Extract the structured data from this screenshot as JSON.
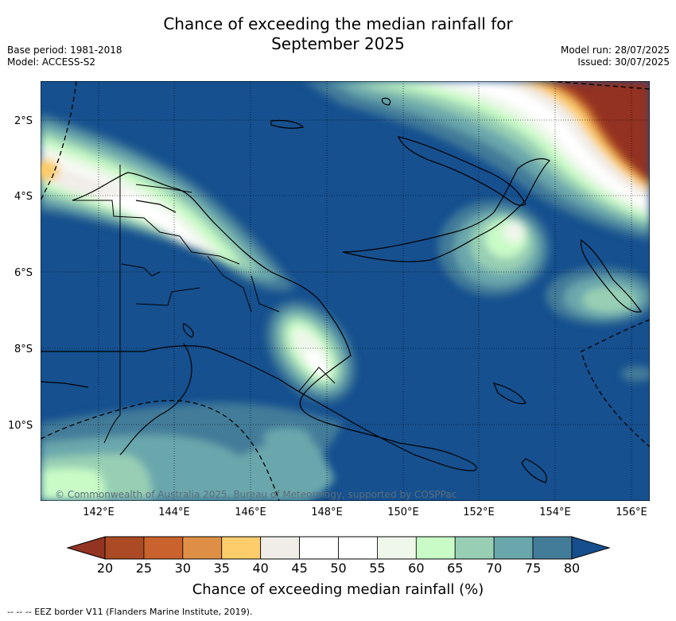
{
  "title": {
    "line1": "Chance of exceeding the median rainfall for",
    "line2": "September 2025"
  },
  "meta": {
    "base_period": "Base period: 1981-2018",
    "model": "Model: ACCESS-S2",
    "model_run": "Model run: 28/07/2025",
    "issued": "Issued: 30/07/2025"
  },
  "map": {
    "lat_labels": [
      "2°S",
      "4°S",
      "6°S",
      "8°S",
      "10°S"
    ],
    "lon_labels": [
      "142°E",
      "144°E",
      "146°E",
      "148°E",
      "150°E",
      "152°E",
      "154°E",
      "156°E"
    ],
    "copyright": "© Commonwealth of Australia 2025, Bureau of Meteorology, supported by COSPPac",
    "ocean_color": "#16508f"
  },
  "colorbar": {
    "label": "Chance of exceeding median rainfall (%)",
    "ticks": [
      "20",
      "25",
      "30",
      "35",
      "40",
      "45",
      "50",
      "55",
      "60",
      "65",
      "70",
      "75",
      "80"
    ],
    "colors": [
      "#ab4a24",
      "#c9622c",
      "#de8f45",
      "#fdcc6b",
      "#f0ede8",
      "#ffffff",
      "#ffffff",
      "#eef7ea",
      "#c8fbc6",
      "#98cfb4",
      "#6aa7ac",
      "#437c99"
    ],
    "under_color": "#933322",
    "over_color": "#174f8d"
  },
  "footnote": "--  --  -- EEZ border V11 (Flanders Marine Institute, 2019)."
}
